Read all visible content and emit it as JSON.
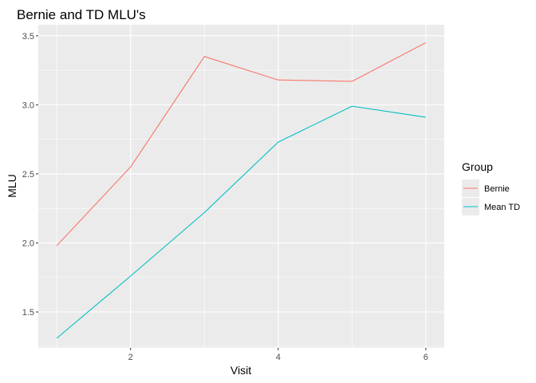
{
  "chart_data": {
    "type": "line",
    "title": "Bernie and TD MLU's",
    "xlabel": "Visit",
    "ylabel": "MLU",
    "x": [
      1,
      2,
      3,
      4,
      5,
      6
    ],
    "xticks": [
      2,
      4,
      6
    ],
    "yticks": [
      1.5,
      2.0,
      2.5,
      3.0,
      3.5
    ],
    "ytick_labels": [
      "1.5",
      "2.0",
      "2.5",
      "3.0",
      "3.5"
    ],
    "xlim": [
      0.75,
      6.25
    ],
    "ylim": [
      1.24,
      3.58
    ],
    "grid": true,
    "legend": {
      "title": "Group",
      "placement": "right"
    },
    "series": [
      {
        "name": "Bernie",
        "color": "#F8766D",
        "values": [
          1.98,
          2.55,
          3.35,
          3.18,
          3.17,
          3.45
        ]
      },
      {
        "name": "Mean TD",
        "color": "#00BFC4",
        "values": [
          1.31,
          1.76,
          2.22,
          2.73,
          2.99,
          2.91
        ]
      }
    ],
    "panel_background": "#EBEBEB",
    "grid_color": "#FFFFFF"
  }
}
